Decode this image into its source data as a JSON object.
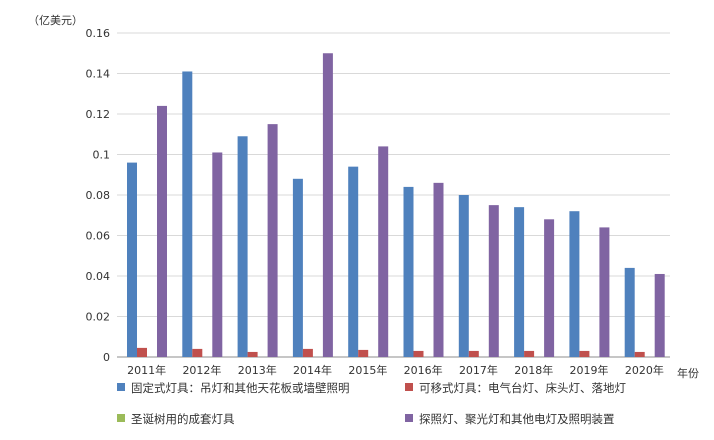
{
  "chart_data": {
    "type": "bar",
    "ylabel": "（亿美元）",
    "xlabel": "年份",
    "ylim": [
      0,
      0.16
    ],
    "yticks": [
      "0",
      "0.02",
      "0.04",
      "0.06",
      "0.08",
      "0.1",
      "0.12",
      "0.14",
      "0.16"
    ],
    "grid": true,
    "legend_position": "bottom",
    "categories": [
      "2011年",
      "2012年",
      "2013年",
      "2014年",
      "2015年",
      "2016年",
      "2017年",
      "2018年",
      "2019年",
      "2020年"
    ],
    "series": [
      {
        "name": "固定式灯具：吊灯和其他天花板或墙壁照明",
        "color": "#4f81bd",
        "values": [
          0.096,
          0.141,
          0.109,
          0.088,
          0.094,
          0.084,
          0.08,
          0.074,
          0.072,
          0.044
        ]
      },
      {
        "name": "可移式灯具：电气台灯、床头灯、落地灯",
        "color": "#c0504d",
        "values": [
          0.0045,
          0.004,
          0.0025,
          0.004,
          0.0035,
          0.003,
          0.003,
          0.003,
          0.003,
          0.0025
        ]
      },
      {
        "name": "圣诞树用的成套灯具",
        "color": "#9bbb59",
        "values": [
          0,
          0,
          0,
          0,
          0,
          0,
          0,
          0,
          0,
          0
        ]
      },
      {
        "name": "探照灯、聚光灯和其他电灯及照明装置",
        "color": "#8064a2",
        "values": [
          0.124,
          0.101,
          0.115,
          0.15,
          0.104,
          0.086,
          0.075,
          0.068,
          0.064,
          0.041
        ]
      }
    ]
  }
}
